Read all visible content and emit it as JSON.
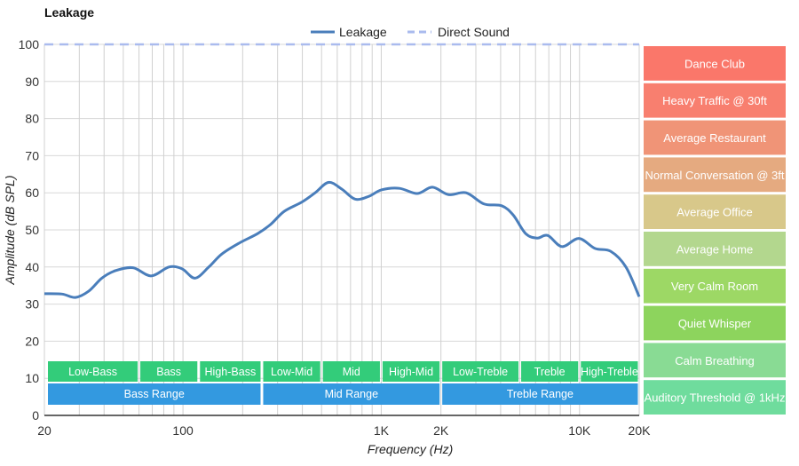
{
  "chart_data": {
    "type": "line",
    "title": "Leakage",
    "xlabel": "Frequency (Hz)",
    "ylabel": "Amplitude (dB SPL)",
    "xscale": "log",
    "xlim": [
      20,
      20000
    ],
    "ylim": [
      0,
      100
    ],
    "grid": true,
    "legend_position": "top-center",
    "x_ticks": [
      {
        "value": 20,
        "label": "20"
      },
      {
        "value": 100,
        "label": "100"
      },
      {
        "value": 1000,
        "label": "1K"
      },
      {
        "value": 2000,
        "label": "2K"
      },
      {
        "value": 10000,
        "label": "10K"
      },
      {
        "value": 20000,
        "label": "20K"
      }
    ],
    "y_ticks": [
      0,
      10,
      20,
      30,
      40,
      50,
      60,
      70,
      80,
      90,
      100
    ],
    "x_gridlines": [
      20,
      30,
      40,
      50,
      60,
      70,
      80,
      90,
      100,
      200,
      300,
      400,
      500,
      600,
      700,
      800,
      900,
      1000,
      2000,
      3000,
      4000,
      5000,
      6000,
      7000,
      8000,
      9000,
      10000,
      20000
    ],
    "series": [
      {
        "name": "Leakage",
        "color": "#4a7ebb",
        "style": "solid",
        "x": [
          20,
          24.6,
          28.7,
          33.5,
          39,
          45.6,
          56,
          69,
          85,
          99,
          115,
          135,
          157,
          193,
          238,
          277,
          324,
          398,
          464,
          542,
          632,
          738,
          862,
          1006,
          1236,
          1520,
          1811,
          2183,
          2680,
          3296,
          4050,
          4630,
          5350,
          6110,
          6920,
          8160,
          9930,
          11970,
          14390,
          17140,
          20000
        ],
        "y": [
          32.8,
          32.7,
          31.8,
          33.5,
          37,
          39,
          39.8,
          37.6,
          40,
          39.5,
          37,
          40,
          43.5,
          46.5,
          49,
          51.5,
          55,
          57.5,
          60,
          62.8,
          61,
          58.3,
          59,
          60.8,
          61.2,
          59.8,
          61.5,
          59.5,
          60,
          57,
          56.5,
          54,
          49,
          47.8,
          48.5,
          45.5,
          47.7,
          45,
          44.2,
          40,
          32
        ]
      },
      {
        "name": "Direct Sound",
        "color": "#aabbee",
        "style": "dashed",
        "x": [
          20,
          20000
        ],
        "y": [
          100,
          100
        ]
      }
    ],
    "bands": [
      {
        "label": "Low-Bass",
        "from": 20,
        "to": 60
      },
      {
        "label": "Bass",
        "from": 60,
        "to": 120
      },
      {
        "label": "High-Bass",
        "from": 120,
        "to": 250
      },
      {
        "label": "Low-Mid",
        "from": 250,
        "to": 500
      },
      {
        "label": "Mid",
        "from": 500,
        "to": 1000
      },
      {
        "label": "High-Mid",
        "from": 1000,
        "to": 2000
      },
      {
        "label": "Low-Treble",
        "from": 2000,
        "to": 5000
      },
      {
        "label": "Treble",
        "from": 5000,
        "to": 10000
      },
      {
        "label": "High-Treble",
        "from": 10000,
        "to": 20000
      }
    ],
    "ranges": [
      {
        "label": "Bass Range",
        "from": 20,
        "to": 250
      },
      {
        "label": "Mid Range",
        "from": 250,
        "to": 2000
      },
      {
        "label": "Treble Range",
        "from": 2000,
        "to": 20000
      }
    ],
    "band_color": "#33cc7a",
    "range_color": "#3399e0",
    "noise_levels": [
      {
        "label": "Dance Club",
        "from": 90,
        "to": 100,
        "color": "#fa776a"
      },
      {
        "label": "Heavy Traffic @ 30ft",
        "from": 80,
        "to": 90,
        "color": "#f87f6f"
      },
      {
        "label": "Average Restaurant",
        "from": 70,
        "to": 80,
        "color": "#f09477"
      },
      {
        "label": "Normal Conversation @ 3ft",
        "from": 60,
        "to": 70,
        "color": "#e5aa80"
      },
      {
        "label": "Average Office",
        "from": 50,
        "to": 60,
        "color": "#d8c88a"
      },
      {
        "label": "Average Home",
        "from": 40,
        "to": 50,
        "color": "#b3d78e"
      },
      {
        "label": "Very Calm Room",
        "from": 30,
        "to": 40,
        "color": "#9dd865"
      },
      {
        "label": "Quiet Whisper",
        "from": 20,
        "to": 30,
        "color": "#8dd45d"
      },
      {
        "label": "Calm Breathing",
        "from": 10,
        "to": 20,
        "color": "#89db94"
      },
      {
        "label": "Auditory Threshold @ 1kHz",
        "from": 0,
        "to": 10,
        "color": "#6fdc9d"
      }
    ]
  }
}
